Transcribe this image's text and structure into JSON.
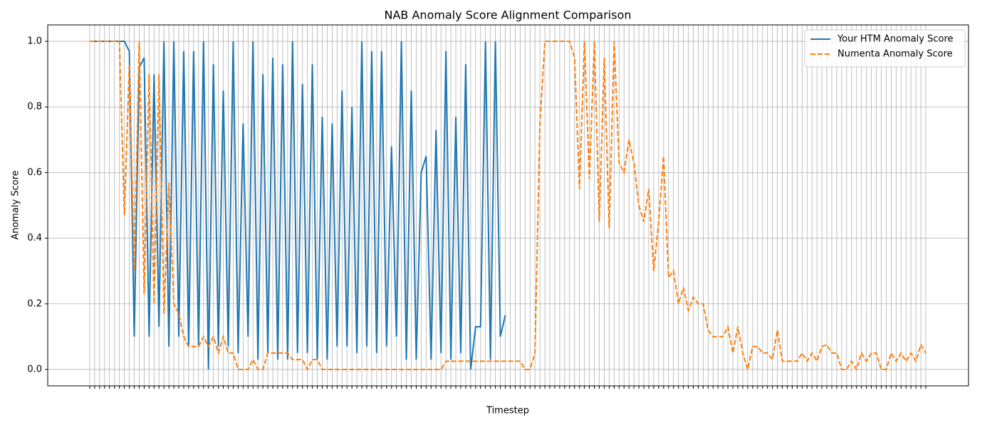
{
  "chart_data": {
    "type": "line",
    "title": "NAB Anomaly Score Alignment Comparison",
    "x_label": "Timestep",
    "y_label": "Anomaly Score",
    "categories": [
      null,
      null,
      null,
      null,
      null,
      null,
      null,
      null,
      null,
      null,
      null,
      null,
      null,
      null,
      null,
      null,
      null,
      null,
      null,
      null,
      null,
      null,
      null,
      null,
      null,
      null,
      null,
      null,
      null,
      null,
      null,
      null,
      null,
      null,
      null,
      null,
      null,
      null,
      null,
      null,
      null,
      null,
      null,
      null,
      null,
      null,
      null,
      null,
      null,
      null,
      null,
      null,
      null,
      null,
      null,
      null,
      null,
      null,
      null,
      null,
      null,
      null,
      null,
      null,
      null,
      null,
      null,
      null,
      null,
      null,
      null,
      null,
      null,
      null,
      null,
      null,
      null,
      null,
      null,
      null,
      null,
      null,
      null,
      null,
      null,
      null,
      null,
      null,
      null,
      null,
      null,
      null,
      null,
      null,
      null,
      null,
      null,
      null,
      null,
      null,
      null,
      null,
      null,
      null,
      null,
      null,
      null,
      null,
      null,
      null,
      null,
      null,
      null,
      null,
      null,
      null,
      null,
      null,
      null,
      null,
      null,
      null,
      null,
      null,
      null,
      null,
      null,
      null,
      null,
      null,
      null,
      null,
      null,
      null,
      null,
      null,
      null,
      null,
      null,
      null,
      null,
      null,
      null,
      null,
      null,
      null,
      null,
      null,
      null,
      null,
      null,
      null,
      null,
      null,
      null,
      null,
      null,
      null,
      null,
      null,
      null,
      null,
      null,
      null,
      null,
      null,
      null,
      null,
      null,
      null
    ],
    "series": [
      {
        "name": "Your HTM Anomaly Score",
        "color": "#1f77b4",
        "dash": false,
        "values": [
          1,
          1,
          1,
          1,
          1,
          1,
          1,
          1,
          0.97,
          0.1,
          0.92,
          0.95,
          0.1,
          0.9,
          0.13,
          1.0,
          0.07,
          1.0,
          0.1,
          0.97,
          0.07,
          0.97,
          0.07,
          1.0,
          0.0,
          0.93,
          0.07,
          0.85,
          0.07,
          1.0,
          0.05,
          0.75,
          0.1,
          1.0,
          0.03,
          0.9,
          0.05,
          0.95,
          0.03,
          0.93,
          0.03,
          1.0,
          0.05,
          0.87,
          0.05,
          0.93,
          0.03,
          0.77,
          0.03,
          0.75,
          0.07,
          0.85,
          0.07,
          0.8,
          0.05,
          1.0,
          0.07,
          0.97,
          0.05,
          0.97,
          0.07,
          0.68,
          0.1,
          1.0,
          0.03,
          0.85,
          0.03,
          0.6,
          0.65,
          0.03,
          0.73,
          0.05,
          0.97,
          0.03,
          0.77,
          0.05,
          0.93,
          0.0,
          0.13,
          0.13,
          1.0,
          0.03,
          1.0,
          0.1,
          0.165,
          null,
          null,
          null,
          null,
          null,
          null,
          null,
          null,
          null,
          null,
          null,
          null,
          null,
          null,
          null,
          null,
          null,
          null,
          null,
          null,
          null,
          null,
          null,
          null,
          null,
          null,
          null,
          null,
          null,
          null,
          null,
          null,
          null,
          null,
          null,
          null,
          null,
          null,
          null,
          null,
          null,
          null,
          null,
          null,
          null,
          null,
          null,
          null,
          null,
          null,
          null,
          null,
          null,
          null,
          null,
          null,
          null,
          null,
          null,
          null,
          null,
          null,
          null,
          null,
          null,
          null,
          null,
          null,
          null,
          null,
          null,
          null,
          null,
          null,
          null,
          null,
          null,
          null,
          null,
          null,
          null,
          null,
          null,
          null,
          null
        ]
      },
      {
        "name": "Numenta Anomaly Score",
        "color": "#ff7f0e",
        "dash": true,
        "values": [
          1,
          1,
          1,
          1,
          1,
          1,
          1,
          0.47,
          0.93,
          0.3,
          1.0,
          0.23,
          0.9,
          0.2,
          0.9,
          0.17,
          0.57,
          0.2,
          0.17,
          0.1,
          0.07,
          0.07,
          0.07,
          0.1,
          0.07,
          0.1,
          0.05,
          0.1,
          0.05,
          0.05,
          0,
          0,
          0,
          0.03,
          0,
          0,
          0.05,
          0.05,
          0.05,
          0.05,
          0.05,
          0.03,
          0.03,
          0.03,
          0,
          0.03,
          0.03,
          0,
          0,
          0,
          0,
          0,
          0,
          0,
          0,
          0,
          0,
          0,
          0,
          0,
          0,
          0,
          0,
          0,
          0,
          0,
          0,
          0,
          0,
          0,
          0,
          0,
          0.025,
          0.025,
          0.025,
          0.025,
          0.025,
          0.025,
          0.025,
          0.025,
          0.025,
          0.025,
          0.025,
          0.025,
          0.025,
          0.025,
          0.025,
          0.025,
          0,
          0,
          0.05,
          0.75,
          1.0,
          1.0,
          1.0,
          1.0,
          1.0,
          1.0,
          0.95,
          0.55,
          1.0,
          0.58,
          1.0,
          0.45,
          0.95,
          0.43,
          1.0,
          0.63,
          0.6,
          0.7,
          0.63,
          0.5,
          0.45,
          0.55,
          0.3,
          0.45,
          0.65,
          0.28,
          0.3,
          0.2,
          0.25,
          0.18,
          0.22,
          0.2,
          0.2,
          0.12,
          0.1,
          0.1,
          0.1,
          0.13,
          0.05,
          0.13,
          0.05,
          0,
          0.07,
          0.07,
          0.05,
          0.05,
          0.03,
          0.12,
          0.025,
          0.025,
          0.025,
          0.025,
          0.05,
          0.025,
          0.05,
          0.025,
          0.07,
          0.075,
          0.05,
          0.05,
          0,
          0,
          0.025,
          0,
          0.05,
          0.025,
          0.05,
          0.05,
          0,
          0,
          0.05,
          0.025,
          0.05,
          0.025,
          0.05,
          0.025,
          0.075,
          0.05
        ]
      }
    ],
    "ylim": [
      -0.05,
      1.05
    ],
    "yticks": [
      {
        "value": 0,
        "label": "0.0"
      },
      0.2,
      0.4,
      0.6,
      0.8,
      {
        "value": 1,
        "label": "1.0"
      }
    ],
    "grid": true,
    "legend": "upper right"
  }
}
